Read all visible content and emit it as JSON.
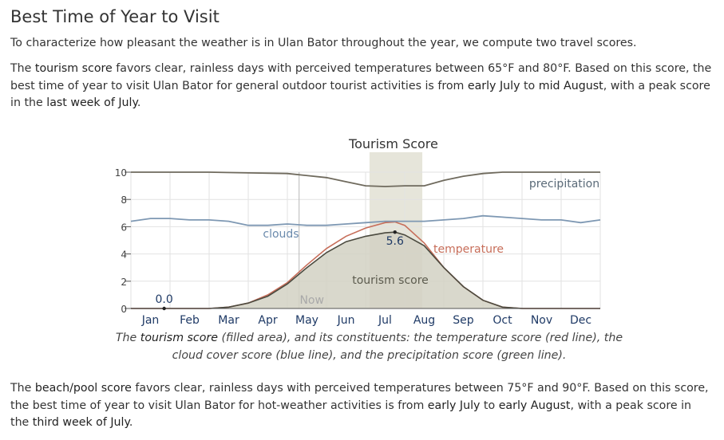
{
  "page": {
    "title": "Best Time of Year to Visit",
    "intro": "To characterize how pleasant the weather is in Ulan Bator throughout the year, we compute two travel scores.",
    "tourism_para": {
      "t1": "The ",
      "b1": "tourism score",
      "t2": " favors clear, rainless days with perceived temperatures between 65°F and 80°F. Based on this score, the best time of year to visit Ulan Bator for general outdoor tourist activities is from ",
      "b2": "early July",
      "t3": " to ",
      "b3": "mid August",
      "t4": ", with a peak score in the ",
      "b4": "last week of July",
      "t5": "."
    },
    "caption": {
      "c1": "The ",
      "b1": "tourism score",
      "c2": " (filled area), and its constituents: the temperature score (red line), the cloud cover score (blue line), and the precipitation score (green line)."
    },
    "beach_para": {
      "t1": "The ",
      "b1": "beach/pool score",
      "t2": " favors clear, rainless days with perceived temperatures between 75°F and 90°F. Based on this score, the best time of year to visit Ulan Bator for hot-weather activities is from ",
      "b2": "early July",
      "t3": " to ",
      "b3": "early August",
      "t4": ", with a peak score in the ",
      "b4": "third week of July",
      "t5": "."
    }
  },
  "chart_data": {
    "type": "area",
    "title": "Tourism Score",
    "categories": [
      "Jan",
      "Feb",
      "Mar",
      "Apr",
      "May",
      "Jun",
      "Jul",
      "Aug",
      "Sep",
      "Oct",
      "Nov",
      "Dec"
    ],
    "yticks": [
      0,
      2,
      4,
      6,
      8,
      10
    ],
    "ylim": [
      0,
      10
    ],
    "xlim": [
      0,
      12
    ],
    "best_period": [
      6.1,
      7.45
    ],
    "now_label": "Now",
    "now_month": 4.3,
    "min_annotation": {
      "x": 0.85,
      "y": 0.0,
      "label": "0.0"
    },
    "max_annotation": {
      "x": 6.75,
      "y": 5.6,
      "label": "5.6"
    },
    "series": [
      {
        "name": "precipitation",
        "role": "precipitation",
        "color": "#6f6a5d",
        "x": [
          0,
          1,
          2,
          3,
          4,
          5,
          5.5,
          6,
          6.5,
          7,
          7.5,
          8,
          8.5,
          9,
          9.5,
          10,
          11,
          12
        ],
        "y": [
          10,
          10,
          10,
          9.95,
          9.9,
          9.6,
          9.3,
          9.0,
          8.95,
          9.0,
          9.0,
          9.4,
          9.7,
          9.9,
          10,
          10,
          10,
          10
        ]
      },
      {
        "name": "clouds",
        "role": "clouds",
        "color": "#7e98b3",
        "x": [
          0,
          0.5,
          1,
          1.5,
          2,
          2.5,
          3,
          3.5,
          4,
          4.5,
          5,
          5.5,
          6,
          6.5,
          7,
          7.5,
          8,
          8.5,
          9,
          9.5,
          10,
          10.5,
          11,
          11.5,
          12
        ],
        "y": [
          6.4,
          6.6,
          6.6,
          6.5,
          6.5,
          6.4,
          6.1,
          6.1,
          6.2,
          6.1,
          6.1,
          6.2,
          6.3,
          6.4,
          6.4,
          6.4,
          6.5,
          6.6,
          6.8,
          6.7,
          6.6,
          6.5,
          6.5,
          6.3,
          6.5
        ]
      },
      {
        "name": "temperature",
        "role": "temperature",
        "color": "#c76e5a",
        "x": [
          0,
          1,
          2,
          2.5,
          3,
          3.5,
          4,
          4.5,
          5,
          5.5,
          6,
          6.5,
          6.75,
          7,
          7.5,
          8,
          8.5,
          9,
          9.5,
          10,
          12
        ],
        "y": [
          0,
          0,
          0,
          0.1,
          0.4,
          1.0,
          1.9,
          3.2,
          4.4,
          5.3,
          5.9,
          6.3,
          6.35,
          6.1,
          4.8,
          3.0,
          1.6,
          0.6,
          0.1,
          0,
          0
        ]
      },
      {
        "name": "tourism score",
        "role": "tourism",
        "color": "#4b4a3f",
        "fill": "#d2d1c3",
        "x": [
          0,
          1,
          2,
          2.5,
          3,
          3.5,
          4,
          4.5,
          5,
          5.5,
          6,
          6.5,
          6.75,
          7,
          7.5,
          8,
          8.5,
          9,
          9.5,
          10,
          12
        ],
        "y": [
          0,
          0,
          0,
          0.1,
          0.4,
          0.9,
          1.8,
          3.0,
          4.1,
          4.9,
          5.3,
          5.55,
          5.6,
          5.4,
          4.6,
          3.0,
          1.6,
          0.6,
          0.1,
          0,
          0
        ]
      }
    ],
    "series_labels": [
      "precipitation",
      "clouds",
      "temperature",
      "tourism score"
    ]
  }
}
